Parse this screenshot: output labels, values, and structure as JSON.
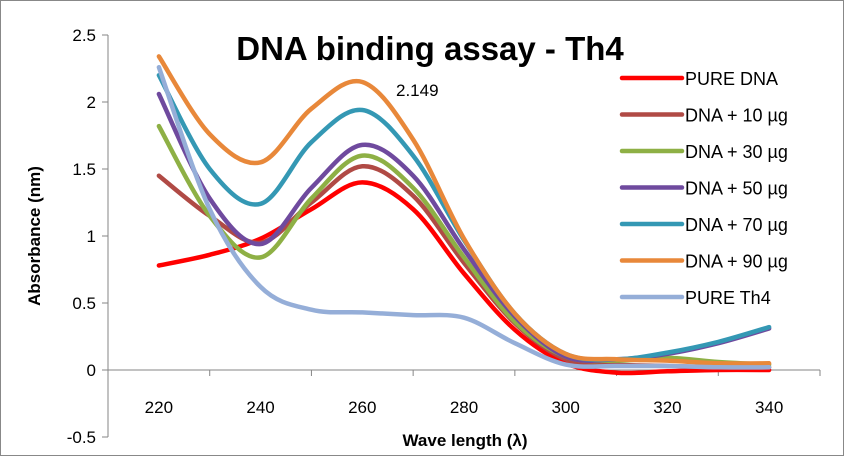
{
  "chart_data": {
    "type": "line",
    "title": "DNA binding assay - Th4",
    "xlabel": "Wave length (λ)",
    "ylabel": "Absorbance (nm)",
    "xlim": [
      210,
      350
    ],
    "ylim": [
      -0.5,
      2.5
    ],
    "x_ticks": [
      "220",
      "240",
      "260",
      "280",
      "300",
      "320",
      "340"
    ],
    "y_ticks": [
      "-0.5",
      "0",
      "0.5",
      "1",
      "1.5",
      "2",
      "2.5"
    ],
    "grid": false,
    "legend_position": "right",
    "annotation": {
      "text": "2.149",
      "x": 260,
      "y": 2.149
    },
    "series": [
      {
        "name": "PURE DNA",
        "color": "#ff0000",
        "x": [
          220,
          230,
          240,
          250,
          260,
          270,
          280,
          290,
          300,
          310,
          320,
          330,
          340
        ],
        "y": [
          0.78,
          0.86,
          0.98,
          1.2,
          1.4,
          1.2,
          0.72,
          0.3,
          0.05,
          -0.02,
          -0.01,
          0.0,
          0.0
        ]
      },
      {
        "name": "DNA + 10 µg",
        "color": "#b04a45",
        "x": [
          220,
          230,
          240,
          250,
          260,
          270,
          280,
          290,
          300,
          310,
          320,
          330,
          340
        ],
        "y": [
          1.45,
          1.15,
          0.95,
          1.25,
          1.52,
          1.3,
          0.8,
          0.35,
          0.08,
          0.04,
          0.03,
          0.02,
          0.02
        ]
      },
      {
        "name": "DNA + 30 µg",
        "color": "#8eb045",
        "x": [
          220,
          230,
          240,
          250,
          260,
          270,
          280,
          290,
          300,
          310,
          320,
          330,
          340
        ],
        "y": [
          1.82,
          1.15,
          0.84,
          1.28,
          1.6,
          1.36,
          0.84,
          0.36,
          0.1,
          0.07,
          0.09,
          0.06,
          0.04
        ]
      },
      {
        "name": "DNA + 50 µg",
        "color": "#6f4a9e",
        "x": [
          220,
          230,
          240,
          250,
          260,
          270,
          280,
          290,
          300,
          310,
          320,
          330,
          340
        ],
        "y": [
          2.06,
          1.28,
          0.94,
          1.36,
          1.68,
          1.45,
          0.9,
          0.4,
          0.1,
          0.08,
          0.12,
          0.2,
          0.31
        ]
      },
      {
        "name": "DNA + 70 µg",
        "color": "#3498b4",
        "x": [
          220,
          230,
          240,
          250,
          260,
          270,
          280,
          290,
          300,
          310,
          320,
          330,
          340
        ],
        "y": [
          2.2,
          1.5,
          1.24,
          1.7,
          1.94,
          1.6,
          0.97,
          0.42,
          0.12,
          0.08,
          0.13,
          0.21,
          0.32
        ]
      },
      {
        "name": "DNA + 90 µg",
        "color": "#e8883a",
        "x": [
          220,
          230,
          240,
          250,
          260,
          270,
          280,
          290,
          300,
          310,
          320,
          330,
          340
        ],
        "y": [
          2.34,
          1.76,
          1.55,
          1.95,
          2.149,
          1.72,
          0.98,
          0.42,
          0.12,
          0.08,
          0.07,
          0.05,
          0.05
        ]
      },
      {
        "name": "PURE Th4",
        "color": "#95aed8",
        "x": [
          220,
          230,
          240,
          250,
          260,
          270,
          280,
          290,
          300,
          310,
          320,
          330,
          340
        ],
        "y": [
          2.26,
          1.2,
          0.62,
          0.45,
          0.43,
          0.41,
          0.39,
          0.2,
          0.04,
          0.03,
          0.03,
          0.02,
          0.02
        ]
      }
    ]
  }
}
